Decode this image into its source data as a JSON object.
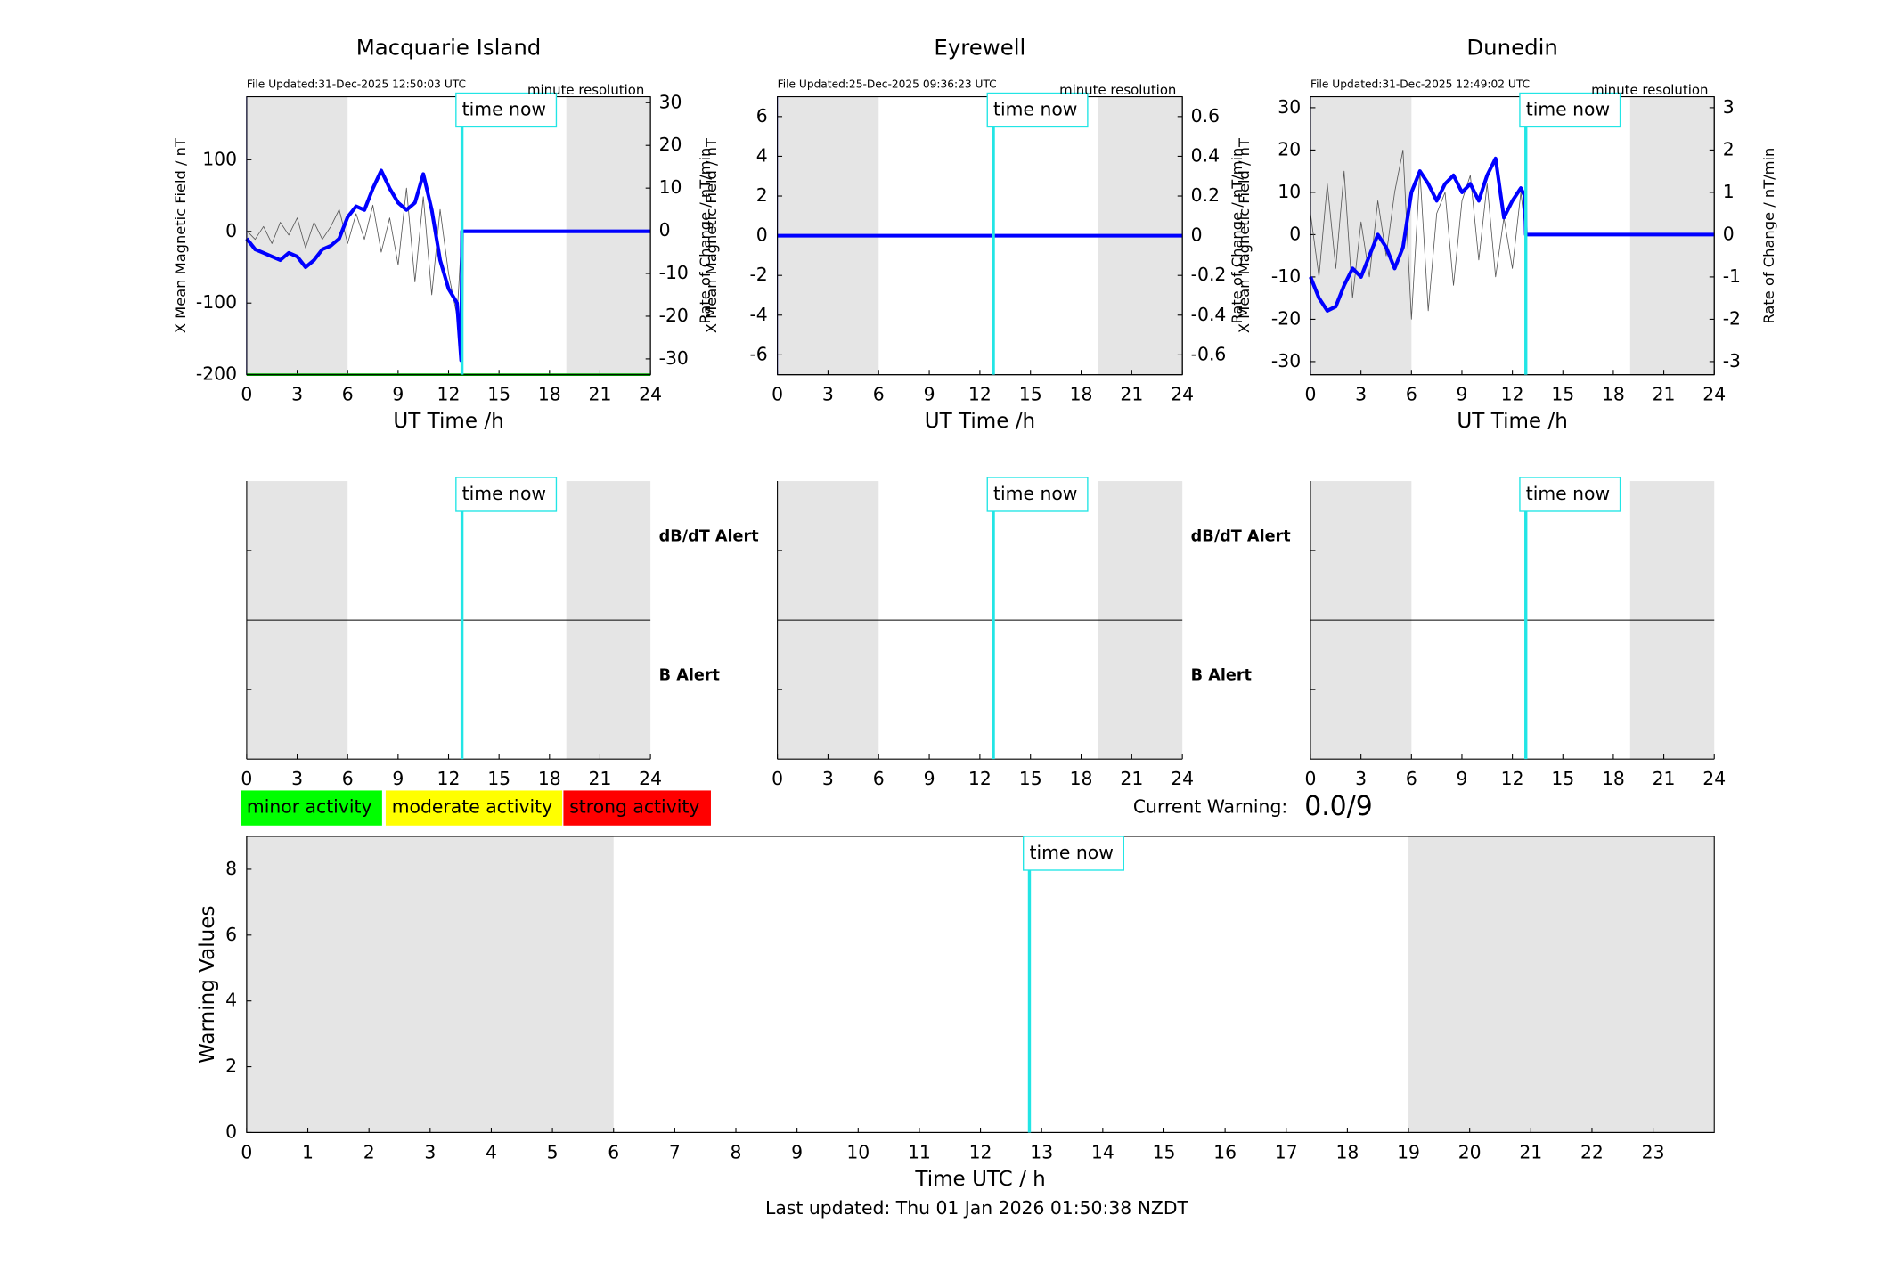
{
  "chart_data": [
    {
      "type": "line",
      "title": "Macquarie Island",
      "file_updated": "File Updated:31-Dec-2025 12:50:03 UTC",
      "resolution": "minute resolution",
      "xlabel": "UT Time /h",
      "ylabel": "X Mean Magnetic Field / nT",
      "y2label": "Rate of Change / nT/min",
      "xlim": [
        0,
        24
      ],
      "xticks": [
        0,
        3,
        6,
        9,
        12,
        15,
        18,
        21,
        24
      ],
      "ylim": [
        -200,
        188
      ],
      "yticks": [
        -200,
        -100,
        0,
        100
      ],
      "y2lim": [
        -33.7,
        31.4
      ],
      "y2ticks": [
        -30,
        -20,
        -10,
        0,
        10,
        20,
        30
      ],
      "shading": [
        [
          0,
          6
        ],
        [
          19,
          24
        ]
      ],
      "time_now": 12.8,
      "time_now_label": "time now",
      "series": [
        {
          "color": "#00aa00",
          "x": [
            0,
            24
          ],
          "values": [
            -200,
            -200
          ]
        },
        {
          "color": "#555555",
          "axis": "y2",
          "x": [
            0,
            0.5,
            1,
            1.5,
            2,
            2.5,
            3,
            3.5,
            4,
            4.5,
            5,
            5.5,
            6,
            6.5,
            7,
            7.5,
            8,
            8.5,
            9,
            9.5,
            10,
            10.5,
            11,
            11.5,
            12,
            12.5,
            12.8
          ],
          "values": [
            0,
            -2,
            1,
            -3,
            2,
            -1,
            3,
            -4,
            2,
            -2,
            1,
            5,
            -3,
            4,
            -2,
            6,
            -5,
            3,
            -8,
            10,
            -12,
            8,
            -15,
            5,
            -10,
            -20,
            0
          ]
        },
        {
          "color": "#0000ff",
          "x": [
            0,
            0.5,
            1,
            1.5,
            2,
            2.5,
            3,
            3.5,
            4,
            4.5,
            5,
            5.5,
            6,
            6.5,
            7,
            7.5,
            8,
            8.5,
            9,
            9.5,
            10,
            10.5,
            11,
            11.5,
            12,
            12.5,
            12.75,
            12.8,
            24
          ],
          "values": [
            -10,
            -25,
            -30,
            -35,
            -40,
            -30,
            -35,
            -50,
            -40,
            -25,
            -20,
            -10,
            20,
            35,
            30,
            60,
            85,
            60,
            40,
            30,
            40,
            80,
            30,
            -40,
            -80,
            -100,
            -180,
            0,
            0
          ]
        }
      ]
    },
    {
      "type": "line",
      "title": "Eyrewell",
      "file_updated": "File Updated:25-Dec-2025 09:36:23 UTC",
      "resolution": "minute resolution",
      "xlabel": "UT Time /h",
      "ylabel": "X Mean Magnetic Field / nT",
      "y2label": "Rate of Change / nT/min",
      "xlim": [
        0,
        24
      ],
      "xticks": [
        0,
        3,
        6,
        9,
        12,
        15,
        18,
        21,
        24
      ],
      "ylim": [
        -7,
        7
      ],
      "yticks": [
        -6,
        -4,
        -2,
        0,
        2,
        4,
        6
      ],
      "y2lim": [
        -0.7,
        0.7
      ],
      "y2ticks": [
        -0.6,
        -0.4,
        -0.2,
        0,
        0.2,
        0.4,
        0.6
      ],
      "shading": [
        [
          0,
          6
        ],
        [
          19,
          24
        ]
      ],
      "time_now": 12.8,
      "time_now_label": "time now",
      "series": [
        {
          "color": "#0000ff",
          "x": [
            0,
            24
          ],
          "values": [
            0,
            0
          ]
        }
      ]
    },
    {
      "type": "line",
      "title": "Dunedin",
      "file_updated": "File Updated:31-Dec-2025 12:49:02 UTC",
      "resolution": "minute resolution",
      "xlabel": "UT Time /h",
      "ylabel": "X Mean Magnetic Field / nT",
      "y2label": "Rate of Change / nT/min",
      "xlim": [
        0,
        24
      ],
      "xticks": [
        0,
        3,
        6,
        9,
        12,
        15,
        18,
        21,
        24
      ],
      "ylim": [
        -33.1,
        32.6
      ],
      "yticks": [
        -30,
        -20,
        -10,
        0,
        10,
        20,
        30
      ],
      "y2lim": [
        -3.31,
        3.26
      ],
      "y2ticks": [
        -3,
        -2,
        -1,
        0,
        1,
        2,
        3
      ],
      "shading": [
        [
          0,
          6
        ],
        [
          19,
          24
        ]
      ],
      "time_now": 12.8,
      "time_now_label": "time now",
      "series": [
        {
          "color": "#555555",
          "axis": "y2",
          "x": [
            0,
            0.5,
            1,
            1.5,
            2,
            2.5,
            3,
            3.5,
            4,
            4.5,
            5,
            5.5,
            6,
            6.5,
            7,
            7.5,
            8,
            8.5,
            9,
            9.5,
            10,
            10.5,
            11,
            11.5,
            12,
            12.5,
            12.8
          ],
          "values": [
            0.5,
            -1,
            1.2,
            -0.8,
            1.5,
            -1.5,
            0.3,
            -1,
            0.8,
            -0.5,
            1,
            2,
            -2,
            1.5,
            -1.8,
            0.5,
            1,
            -1.2,
            0.8,
            1.4,
            -0.6,
            1.2,
            -1,
            0.4,
            -0.8,
            1,
            0
          ]
        },
        {
          "color": "#0000ff",
          "x": [
            0,
            0.5,
            1,
            1.5,
            2,
            2.5,
            3,
            3.5,
            4,
            4.5,
            5,
            5.5,
            6,
            6.5,
            7,
            7.5,
            8,
            8.5,
            9,
            9.5,
            10,
            10.5,
            11,
            11.5,
            12,
            12.5,
            12.75,
            12.8,
            24
          ],
          "values": [
            -10,
            -15,
            -18,
            -17,
            -12,
            -8,
            -10,
            -5,
            0,
            -3,
            -8,
            -3,
            10,
            15,
            12,
            8,
            12,
            14,
            10,
            12,
            8,
            14,
            18,
            4,
            8,
            11,
            9,
            0,
            0
          ]
        }
      ]
    },
    {
      "type": "alert",
      "xlim": [
        0,
        24
      ],
      "xticks": [
        0,
        3,
        6,
        9,
        12,
        15,
        18,
        21,
        24
      ],
      "shading": [
        [
          0,
          6
        ],
        [
          19,
          24
        ]
      ],
      "time_now": 12.8,
      "time_now_label": "time now",
      "alerts": [
        {
          "label": "dB/dT Alert",
          "color": "#000000"
        },
        {
          "label": "B Alert",
          "color": "#0000ff"
        }
      ]
    },
    {
      "type": "alert",
      "xlim": [
        0,
        24
      ],
      "xticks": [
        0,
        3,
        6,
        9,
        12,
        15,
        18,
        21,
        24
      ],
      "shading": [
        [
          0,
          6
        ],
        [
          19,
          24
        ]
      ],
      "time_now": 12.8,
      "time_now_label": "time now",
      "alerts": [
        {
          "label": "dB/dT Alert",
          "color": "#000000"
        },
        {
          "label": "B Alert",
          "color": "#0000ff"
        }
      ]
    },
    {
      "type": "alert",
      "xlim": [
        0,
        24
      ],
      "xticks": [
        0,
        3,
        6,
        9,
        12,
        15,
        18,
        21,
        24
      ],
      "shading": [
        [
          0,
          6
        ],
        [
          19,
          24
        ]
      ],
      "time_now": 12.8,
      "time_now_label": "time now"
    },
    {
      "type": "line",
      "xlabel": "Time UTC / h",
      "ylabel": "Warning Values",
      "xlim": [
        0,
        24
      ],
      "xticks": [
        0,
        1,
        2,
        3,
        4,
        5,
        6,
        7,
        8,
        9,
        10,
        11,
        12,
        13,
        14,
        15,
        16,
        17,
        18,
        19,
        20,
        21,
        22,
        23
      ],
      "ylim": [
        0,
        9
      ],
      "yticks": [
        0,
        2,
        4,
        6,
        8
      ],
      "shading": [
        [
          0,
          6
        ],
        [
          19,
          24
        ]
      ],
      "time_now": 12.8,
      "time_now_label": "time now",
      "series": [],
      "activity_levels": [
        {
          "label": "minor activity",
          "color": "#00ff00"
        },
        {
          "label": "moderate activity",
          "color": "#ffff00"
        },
        {
          "label": "strong activity",
          "color": "#ff0000"
        }
      ],
      "current_warning_label": "Current Warning:",
      "current_warning": "0.0/9",
      "footer": "Last updated: Thu 01 Jan 2026 01:50:38 NZDT"
    }
  ]
}
